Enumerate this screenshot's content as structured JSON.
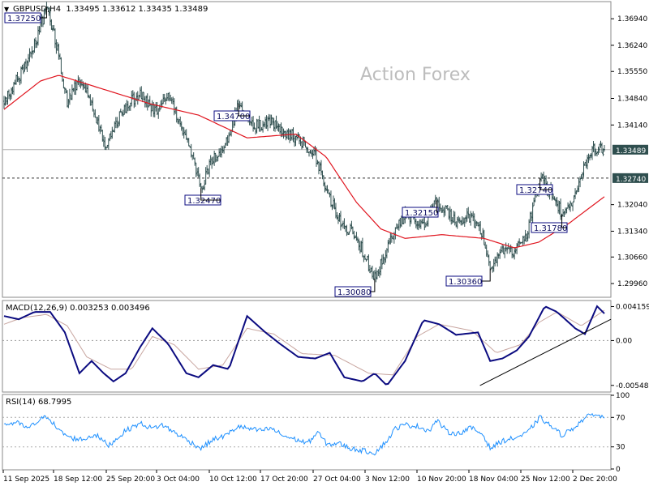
{
  "header": {
    "menu_glyph": "▼",
    "title": "GBPUSD,H4  1.33495 1.33612 1.33435 1.33489"
  },
  "watermark": "Action Forex",
  "colors": {
    "candle": "#2f4f4f",
    "ma": "#e0141e",
    "macd_line": "#0b0b80",
    "macd_signal": "#c8a6a0",
    "rsi_line": "#1e90ff",
    "price_tag_bg": "#2f4f4f",
    "label_border": "#0b0b80",
    "panel_border": "#8a8a8a"
  },
  "chart_data": [
    {
      "type": "candlestick",
      "title": "GBPUSD,H4",
      "ohlc_current": {
        "open": 1.33495,
        "high": 1.33612,
        "low": 1.33435,
        "close": 1.33489
      },
      "ylim": [
        1.2962,
        1.3737
      ],
      "y_ticks": [
        "1.36940",
        "1.36240",
        "1.35550",
        "1.34840",
        "1.34140",
        "1.33489",
        "1.32740",
        "1.32040",
        "1.31340",
        "1.30660",
        "1.29960"
      ],
      "current_price": "1.33489",
      "horizontal_line": "1.32740",
      "x_ticks": [
        "11 Sep 2025",
        "18 Sep 12:00",
        "25 Sep 20:00",
        "3 Oct 04:00",
        "10 Oct 12:00",
        "17 Oct 20:00",
        "27 Oct 04:00",
        "3 Nov 12:00",
        "10 Nov 20:00",
        "18 Nov 04:00",
        "25 Nov 12:00",
        "2 Dec 20:00"
      ],
      "annotations": [
        "1.37250",
        "1.34700",
        "1.32470",
        "1.32150",
        "1.32740",
        "1.31780",
        "1.30080",
        "1.30360"
      ],
      "swing_points": [
        {
          "label": "1.37250",
          "index": 35,
          "price": 1.3725
        },
        {
          "label": "1.34700",
          "index": 193,
          "price": 1.347
        },
        {
          "label": "1.32470",
          "index": 162,
          "price": 1.3247
        },
        {
          "label": "1.30080",
          "index": 305,
          "price": 1.3008
        },
        {
          "label": "1.32150",
          "index": 356,
          "price": 1.3215
        },
        {
          "label": "1.30360",
          "index": 400,
          "price": 1.3036
        },
        {
          "label": "1.32740",
          "index": 441,
          "price": 1.3274
        },
        {
          "label": "1.31780",
          "index": 459,
          "price": 1.3178
        }
      ],
      "price_path": [
        [
          0,
          1.3475
        ],
        [
          12,
          1.354
        ],
        [
          25,
          1.3625
        ],
        [
          35,
          1.3725
        ],
        [
          45,
          1.36
        ],
        [
          52,
          1.347
        ],
        [
          62,
          1.354
        ],
        [
          72,
          1.347
        ],
        [
          84,
          1.336
        ],
        [
          98,
          1.3455
        ],
        [
          112,
          1.35
        ],
        [
          124,
          1.345
        ],
        [
          135,
          1.349
        ],
        [
          150,
          1.338
        ],
        [
          162,
          1.3247
        ],
        [
          172,
          1.333
        ],
        [
          181,
          1.3345
        ],
        [
          193,
          1.347
        ],
        [
          206,
          1.341
        ],
        [
          220,
          1.342
        ],
        [
          235,
          1.339
        ],
        [
          246,
          1.337
        ],
        [
          255,
          1.334
        ],
        [
          266,
          1.324
        ],
        [
          276,
          1.316
        ],
        [
          290,
          1.312
        ],
        [
          305,
          1.3008
        ],
        [
          314,
          1.308
        ],
        [
          322,
          1.314
        ],
        [
          330,
          1.318
        ],
        [
          345,
          1.315
        ],
        [
          356,
          1.3215
        ],
        [
          372,
          1.316
        ],
        [
          385,
          1.317
        ],
        [
          394,
          1.312
        ],
        [
          400,
          1.3036
        ],
        [
          410,
          1.309
        ],
        [
          420,
          1.308
        ],
        [
          430,
          1.313
        ],
        [
          441,
          1.3274
        ],
        [
          452,
          1.323
        ],
        [
          459,
          1.3178
        ],
        [
          468,
          1.3205
        ],
        [
          477,
          1.33
        ],
        [
          485,
          1.335
        ],
        [
          494,
          1.3348
        ]
      ],
      "ma_path": [
        [
          0,
          1.3455
        ],
        [
          30,
          1.353
        ],
        [
          45,
          1.3545
        ],
        [
          70,
          1.352
        ],
        [
          120,
          1.347
        ],
        [
          160,
          1.344
        ],
        [
          180,
          1.341
        ],
        [
          200,
          1.338
        ],
        [
          240,
          1.339
        ],
        [
          265,
          1.333
        ],
        [
          290,
          1.321
        ],
        [
          310,
          1.314
        ],
        [
          330,
          1.3115
        ],
        [
          360,
          1.3125
        ],
        [
          395,
          1.3115
        ],
        [
          420,
          1.309
        ],
        [
          440,
          1.3105
        ],
        [
          465,
          1.3155
        ],
        [
          494,
          1.3225
        ]
      ],
      "series_count": 495
    },
    {
      "type": "line",
      "title": "MACD(12,26,9) 0.003253 0.003496",
      "ylim": [
        -0.0062,
        0.0048
      ],
      "y_ticks": [
        "0.004159",
        "0.00",
        "-0.005485"
      ],
      "values_current": {
        "macd": 0.003253,
        "signal": 0.003496
      },
      "macd_path": [
        [
          0,
          0.003
        ],
        [
          12,
          0.0026
        ],
        [
          25,
          0.0035
        ],
        [
          38,
          0.0035
        ],
        [
          50,
          0.001
        ],
        [
          62,
          -0.004
        ],
        [
          72,
          -0.0025
        ],
        [
          82,
          -0.004
        ],
        [
          90,
          -0.005
        ],
        [
          100,
          -0.004
        ],
        [
          112,
          -0.0008
        ],
        [
          122,
          0.0015
        ],
        [
          135,
          -0.0004
        ],
        [
          150,
          -0.004
        ],
        [
          160,
          -0.0045
        ],
        [
          172,
          -0.003
        ],
        [
          185,
          -0.0035
        ],
        [
          200,
          0.003
        ],
        [
          215,
          0.001
        ],
        [
          228,
          -0.0005
        ],
        [
          242,
          -0.002
        ],
        [
          256,
          -0.0022
        ],
        [
          268,
          -0.0015
        ],
        [
          280,
          -0.0045
        ],
        [
          295,
          -0.005
        ],
        [
          305,
          -0.004
        ],
        [
          315,
          -0.0055
        ],
        [
          330,
          -0.0025
        ],
        [
          345,
          0.0025
        ],
        [
          358,
          0.002
        ],
        [
          372,
          0.0007
        ],
        [
          390,
          0.001
        ],
        [
          400,
          -0.0025
        ],
        [
          410,
          -0.0022
        ],
        [
          422,
          -0.0012
        ],
        [
          432,
          0.0005
        ],
        [
          445,
          0.0042
        ],
        [
          455,
          0.0035
        ],
        [
          470,
          0.0015
        ],
        [
          478,
          0.0008
        ],
        [
          488,
          0.0042
        ],
        [
          494,
          0.0033
        ]
      ],
      "signal_path": [
        [
          0,
          0.002
        ],
        [
          15,
          0.0028
        ],
        [
          35,
          0.0032
        ],
        [
          52,
          0.0018
        ],
        [
          68,
          -0.002
        ],
        [
          88,
          -0.0035
        ],
        [
          105,
          -0.0035
        ],
        [
          122,
          0.0005
        ],
        [
          140,
          -0.0005
        ],
        [
          160,
          -0.0035
        ],
        [
          180,
          -0.003
        ],
        [
          200,
          0.0015
        ],
        [
          222,
          0.0008
        ],
        [
          245,
          -0.0016
        ],
        [
          272,
          -0.0018
        ],
        [
          300,
          -0.004
        ],
        [
          320,
          -0.0042
        ],
        [
          340,
          0.0005
        ],
        [
          358,
          0.002
        ],
        [
          385,
          0.0012
        ],
        [
          405,
          -0.0015
        ],
        [
          425,
          -0.0005
        ],
        [
          440,
          0.0022
        ],
        [
          455,
          0.0035
        ],
        [
          475,
          0.0018
        ],
        [
          494,
          0.0037
        ]
      ],
      "trendline": [
        [
          425,
          -0.0055
        ],
        [
          494,
          0.0025
        ]
      ]
    },
    {
      "type": "line",
      "title": "RSI(14) 68.7995",
      "ylim": [
        0,
        100
      ],
      "y_ticks": [
        "100",
        "70",
        "30",
        "0"
      ],
      "levels": [
        70,
        30
      ],
      "value_current": 68.7995,
      "rsi_path": [
        [
          0,
          60
        ],
        [
          10,
          63
        ],
        [
          20,
          55
        ],
        [
          30,
          67
        ],
        [
          36,
          72
        ],
        [
          45,
          52
        ],
        [
          55,
          42
        ],
        [
          65,
          40
        ],
        [
          75,
          47
        ],
        [
          86,
          32
        ],
        [
          92,
          40
        ],
        [
          100,
          52
        ],
        [
          112,
          62
        ],
        [
          122,
          55
        ],
        [
          130,
          60
        ],
        [
          140,
          50
        ],
        [
          152,
          38
        ],
        [
          162,
          28
        ],
        [
          172,
          40
        ],
        [
          182,
          45
        ],
        [
          193,
          58
        ],
        [
          200,
          55
        ],
        [
          210,
          52
        ],
        [
          220,
          55
        ],
        [
          230,
          45
        ],
        [
          240,
          40
        ],
        [
          250,
          35
        ],
        [
          258,
          50
        ],
        [
          266,
          33
        ],
        [
          275,
          35
        ],
        [
          285,
          28
        ],
        [
          295,
          25
        ],
        [
          305,
          22
        ],
        [
          315,
          38
        ],
        [
          322,
          55
        ],
        [
          330,
          60
        ],
        [
          340,
          58
        ],
        [
          350,
          52
        ],
        [
          356,
          66
        ],
        [
          365,
          50
        ],
        [
          374,
          48
        ],
        [
          384,
          56
        ],
        [
          394,
          47
        ],
        [
          400,
          28
        ],
        [
          410,
          38
        ],
        [
          420,
          42
        ],
        [
          430,
          48
        ],
        [
          441,
          70
        ],
        [
          450,
          58
        ],
        [
          459,
          46
        ],
        [
          468,
          55
        ],
        [
          477,
          68
        ],
        [
          485,
          75
        ],
        [
          494,
          69
        ]
      ]
    }
  ]
}
